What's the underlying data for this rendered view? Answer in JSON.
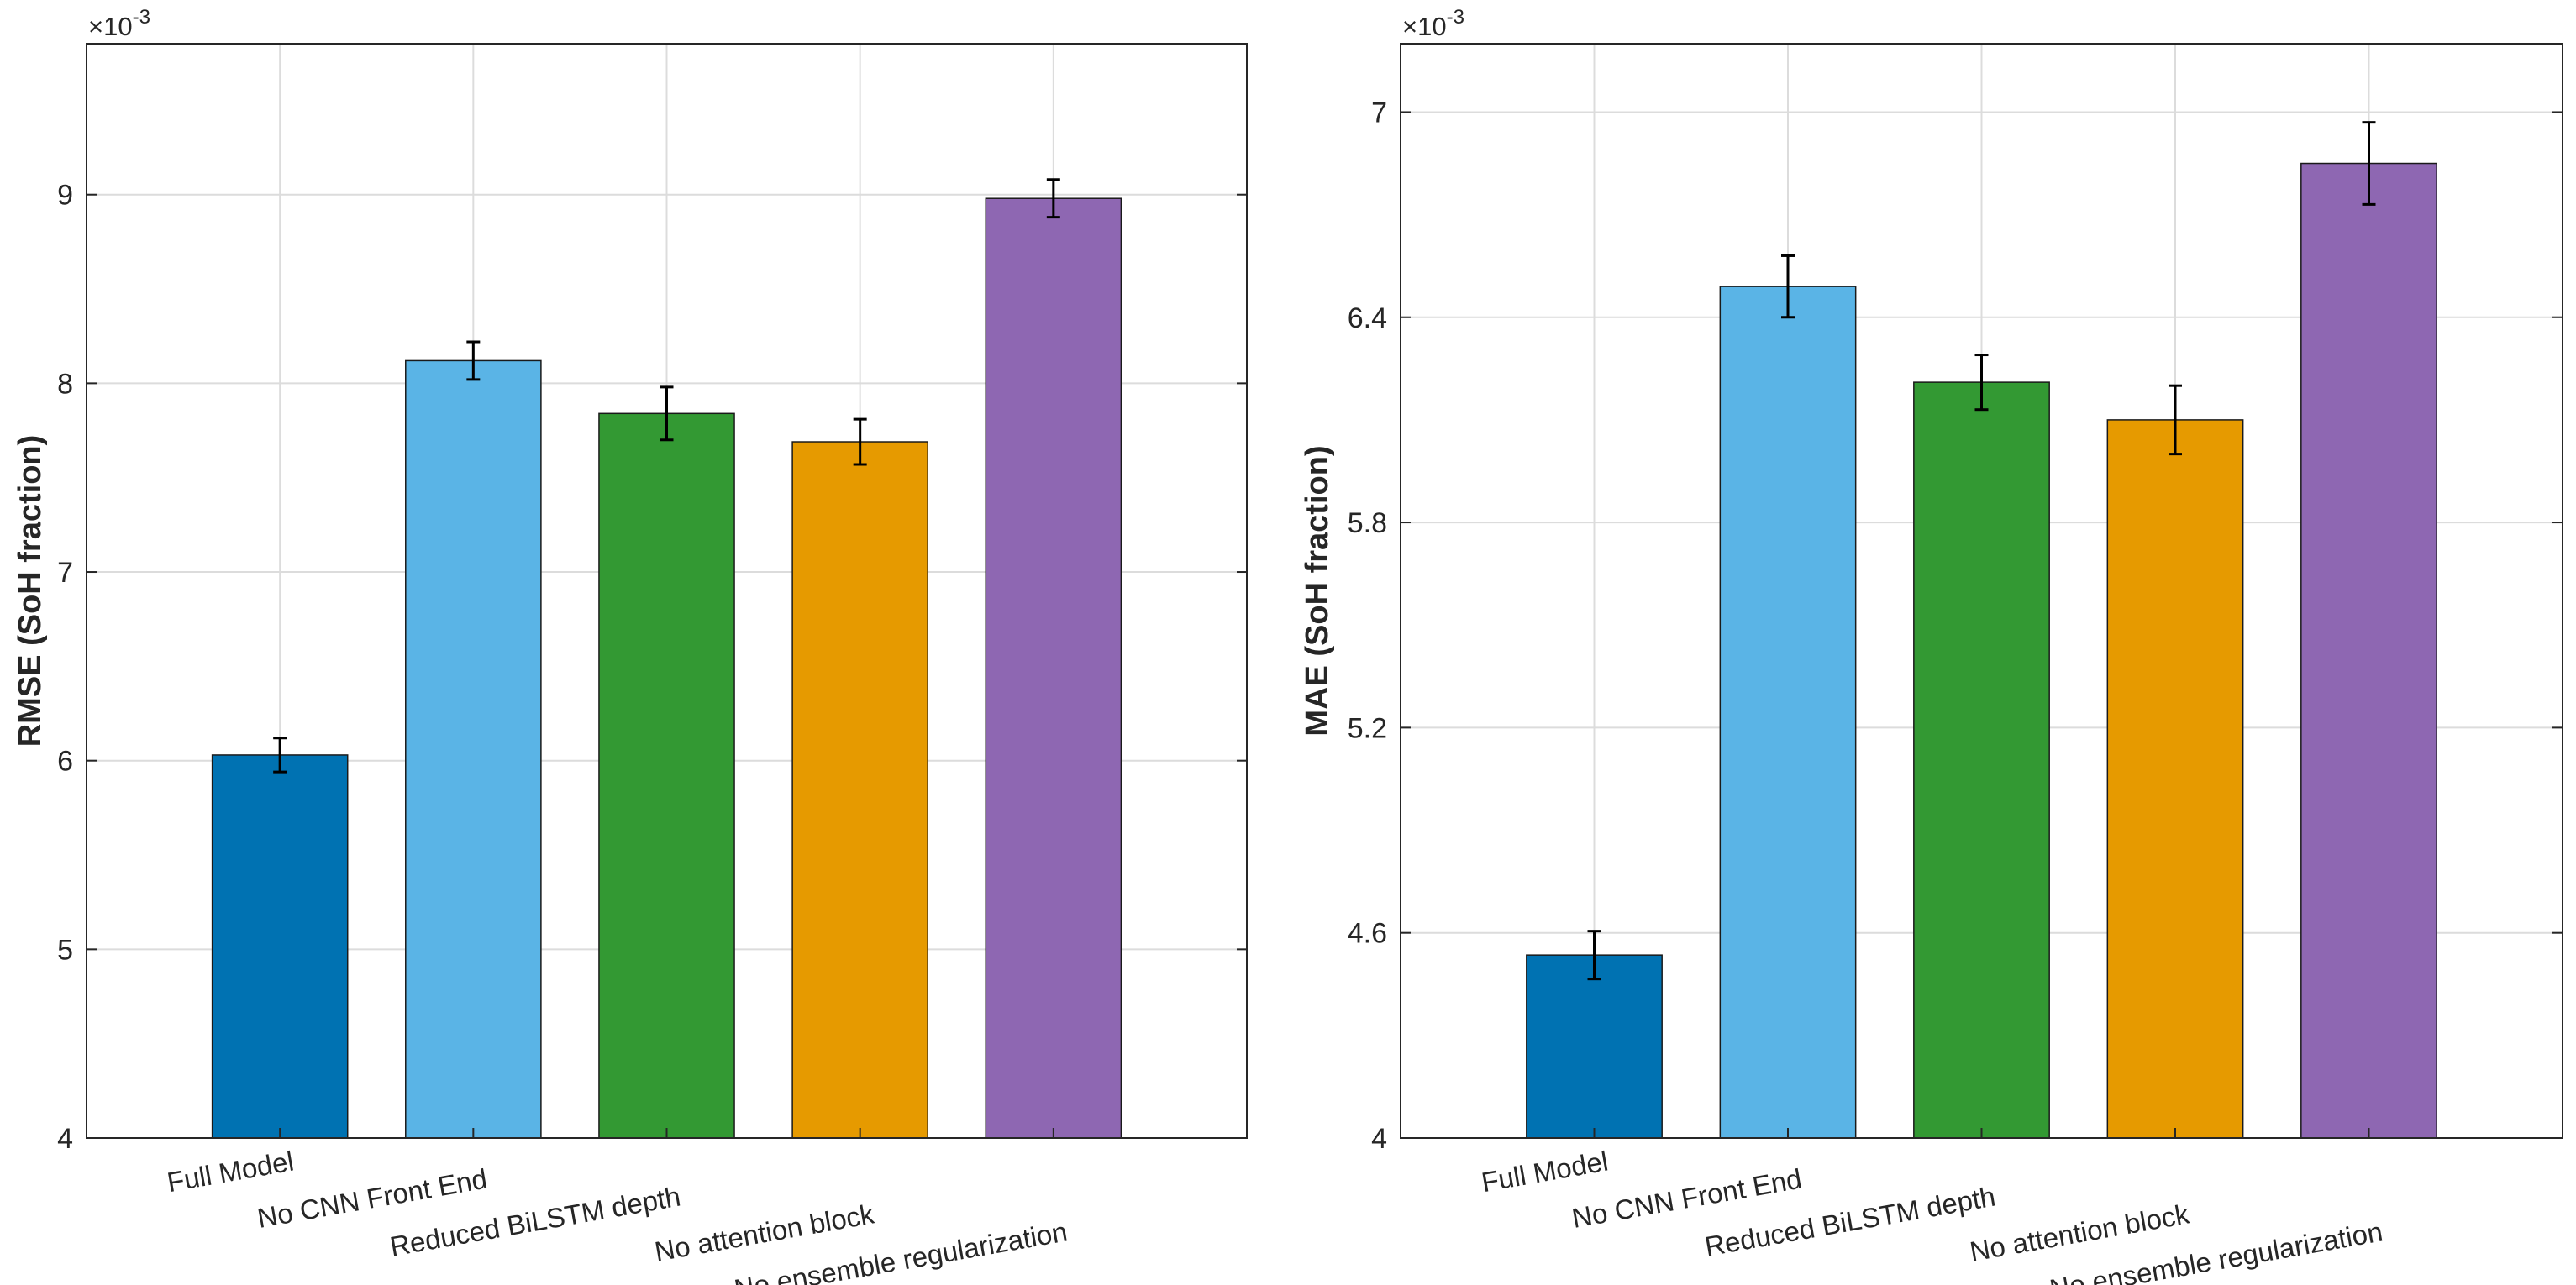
{
  "chart_data": [
    {
      "type": "bar",
      "categories": [
        "Full Model",
        "No CNN Front End",
        "Reduced BiLSTM depth",
        "No attention block",
        "No ensemble regularization"
      ],
      "values": [
        6.03,
        8.12,
        7.84,
        7.69,
        8.98
      ],
      "errors": [
        0.09,
        0.1,
        0.14,
        0.12,
        0.1
      ],
      "colors": [
        "#0072B2",
        "#5AB4E6",
        "#339933",
        "#E69A00",
        "#8E67B2"
      ],
      "title": "",
      "xlabel": "",
      "ylabel": "RMSE (SoH fraction)",
      "ylim": [
        4,
        9.8
      ],
      "yticks": [
        4,
        5,
        6,
        7,
        8,
        9
      ],
      "ytick_labels": [
        "4",
        "5",
        "6",
        "7",
        "8",
        "9"
      ],
      "exponent_label": "×10",
      "exponent_value": "-3",
      "grid": true
    },
    {
      "type": "bar",
      "categories": [
        "Full Model",
        "No CNN Front End",
        "Reduced BiLSTM depth",
        "No attention block",
        "No ensemble regularization"
      ],
      "values": [
        4.535,
        6.49,
        6.21,
        6.1,
        6.85
      ],
      "errors": [
        0.07,
        0.09,
        0.08,
        0.1,
        0.12
      ],
      "colors": [
        "#0072B2",
        "#5AB4E6",
        "#339933",
        "#E69A00",
        "#8E67B2"
      ],
      "title": "",
      "xlabel": "",
      "ylabel": "MAE (SoH fraction)",
      "ylim": [
        4,
        7.2
      ],
      "yticks": [
        4,
        4.6,
        5.2,
        5.8,
        6.4,
        7
      ],
      "ytick_labels": [
        "4",
        "4.6",
        "5.2",
        "5.8",
        "6.4",
        "7"
      ],
      "exponent_label": "×10",
      "exponent_value": "-3",
      "grid": true
    }
  ]
}
